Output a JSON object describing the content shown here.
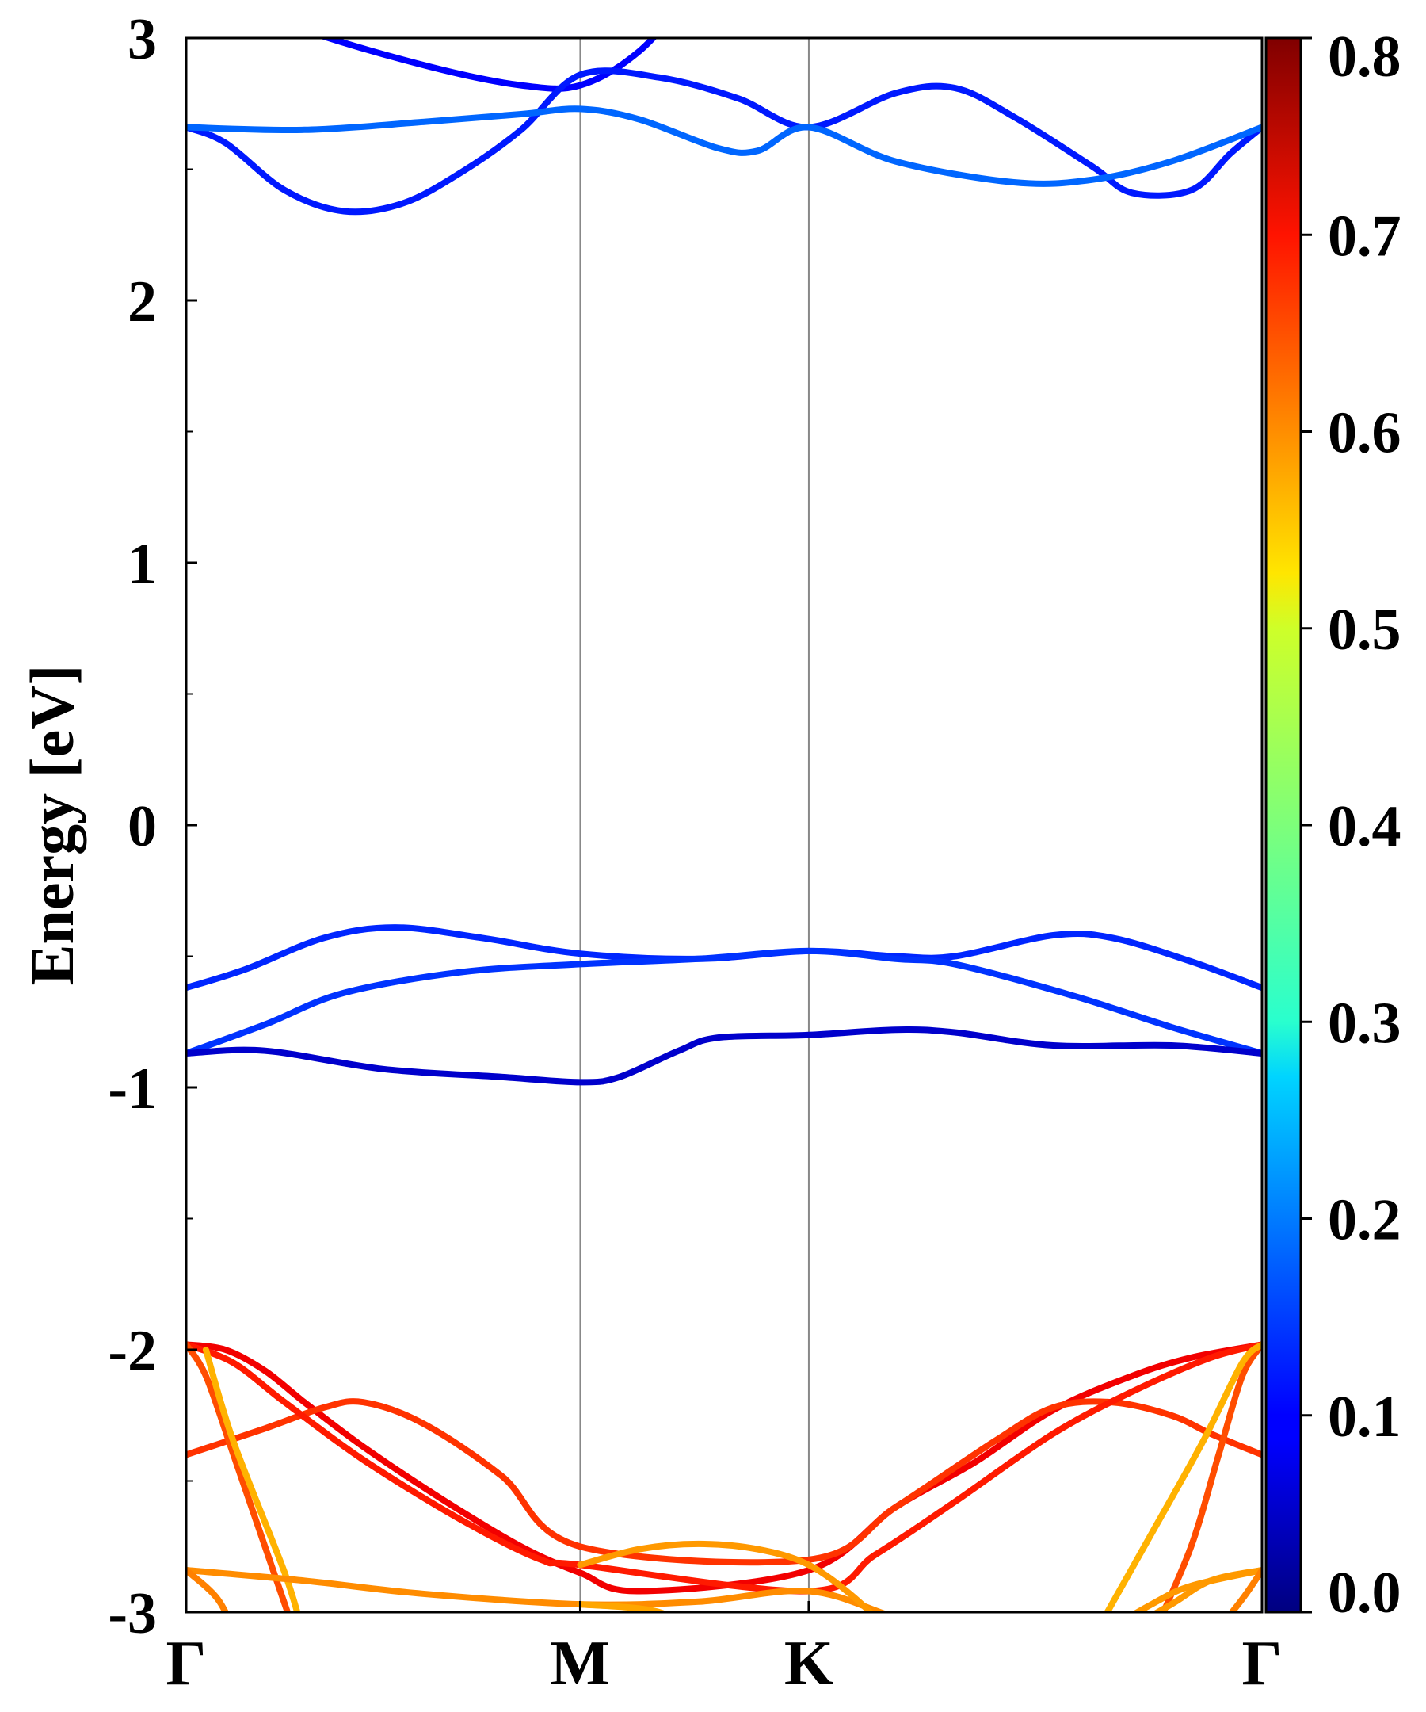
{
  "chart_data": {
    "type": "line",
    "title": "",
    "xlabel": "",
    "ylabel": "Energy [eV]",
    "ylim": [
      -3,
      3
    ],
    "yticks": [
      "-3",
      "-2",
      "-1",
      "0",
      "1",
      "2",
      "3"
    ],
    "xticks": [
      "Γ",
      "M",
      "K",
      "Γ"
    ],
    "high_symmetry_positions": [
      0,
      1,
      1.58,
      2.73
    ],
    "grid": false,
    "colorbar": {
      "min": 0.0,
      "max": 0.8,
      "ticks": [
        "0.0",
        "0.1",
        "0.2",
        "0.3",
        "0.4",
        "0.5",
        "0.6",
        "0.7",
        "0.8"
      ],
      "colormap": "jet"
    },
    "series": [
      {
        "weight": 0.1,
        "points": [
          [
            0,
            3.2
          ],
          [
            0.3,
            3.03
          ],
          [
            0.62,
            2.89
          ],
          [
            0.85,
            2.82
          ],
          [
            1,
            2.82
          ],
          [
            1.15,
            2.95
          ],
          [
            1.3,
            3.2
          ]
        ]
      },
      {
        "weight": 0.12,
        "points": [
          [
            0,
            2.66
          ],
          [
            0.1,
            2.6
          ],
          [
            0.25,
            2.42
          ],
          [
            0.4,
            2.34
          ],
          [
            0.55,
            2.37
          ],
          [
            0.7,
            2.49
          ],
          [
            0.85,
            2.65
          ],
          [
            1,
            2.86
          ],
          [
            1.2,
            2.85
          ],
          [
            1.4,
            2.77
          ],
          [
            1.58,
            2.66
          ],
          [
            1.8,
            2.79
          ],
          [
            1.95,
            2.81
          ],
          [
            2.1,
            2.7
          ],
          [
            2.3,
            2.51
          ],
          [
            2.4,
            2.41
          ],
          [
            2.55,
            2.42
          ],
          [
            2.65,
            2.56
          ],
          [
            2.73,
            2.66
          ]
        ]
      },
      {
        "weight": 0.18,
        "points": [
          [
            0,
            2.66
          ],
          [
            0.3,
            2.65
          ],
          [
            0.6,
            2.68
          ],
          [
            0.85,
            2.71
          ],
          [
            1,
            2.73
          ],
          [
            1.15,
            2.69
          ],
          [
            1.35,
            2.58
          ],
          [
            1.45,
            2.57
          ],
          [
            1.58,
            2.66
          ],
          [
            1.8,
            2.53
          ],
          [
            2.1,
            2.45
          ],
          [
            2.3,
            2.46
          ],
          [
            2.5,
            2.53
          ],
          [
            2.73,
            2.66
          ]
        ]
      },
      {
        "weight": 0.13,
        "points": [
          [
            0,
            -0.62
          ],
          [
            0.15,
            -0.55
          ],
          [
            0.35,
            -0.43
          ],
          [
            0.53,
            -0.39
          ],
          [
            0.75,
            -0.43
          ],
          [
            1,
            -0.49
          ],
          [
            1.3,
            -0.51
          ],
          [
            1.58,
            -0.48
          ],
          [
            1.8,
            -0.5
          ],
          [
            1.95,
            -0.5
          ],
          [
            2.2,
            -0.42
          ],
          [
            2.35,
            -0.43
          ],
          [
            2.55,
            -0.52
          ],
          [
            2.73,
            -0.62
          ]
        ]
      },
      {
        "weight": 0.14,
        "points": [
          [
            0,
            -0.87
          ],
          [
            0.2,
            -0.76
          ],
          [
            0.4,
            -0.64
          ],
          [
            0.7,
            -0.56
          ],
          [
            1,
            -0.53
          ],
          [
            1.3,
            -0.51
          ],
          [
            1.58,
            -0.48
          ],
          [
            1.8,
            -0.51
          ],
          [
            1.95,
            -0.53
          ],
          [
            2.25,
            -0.65
          ],
          [
            2.5,
            -0.77
          ],
          [
            2.73,
            -0.87
          ]
        ]
      },
      {
        "weight": 0.06,
        "points": [
          [
            0,
            -0.87
          ],
          [
            0.2,
            -0.86
          ],
          [
            0.5,
            -0.93
          ],
          [
            0.8,
            -0.96
          ],
          [
            1,
            -0.98
          ],
          [
            1.1,
            -0.96
          ],
          [
            1.25,
            -0.86
          ],
          [
            1.35,
            -0.81
          ],
          [
            1.58,
            -0.8
          ],
          [
            1.8,
            -0.78
          ],
          [
            1.95,
            -0.79
          ],
          [
            2.2,
            -0.84
          ],
          [
            2.5,
            -0.84
          ],
          [
            2.73,
            -0.87
          ]
        ]
      },
      {
        "weight": 0.71,
        "points": [
          [
            0,
            -1.98
          ],
          [
            0.1,
            -2.0
          ],
          [
            0.2,
            -2.08
          ],
          [
            0.3,
            -2.2
          ],
          [
            0.45,
            -2.37
          ],
          [
            0.65,
            -2.57
          ],
          [
            0.85,
            -2.75
          ],
          [
            1,
            -2.85
          ],
          [
            1.15,
            -2.92
          ],
          [
            1.58,
            -2.84
          ],
          [
            1.8,
            -2.6
          ],
          [
            2.0,
            -2.43
          ],
          [
            2.2,
            -2.23
          ],
          [
            2.4,
            -2.1
          ],
          [
            2.55,
            -2.03
          ],
          [
            2.73,
            -1.98
          ]
        ]
      },
      {
        "weight": 0.66,
        "points": [
          [
            0,
            -2.4
          ],
          [
            0.2,
            -2.3
          ],
          [
            0.35,
            -2.22
          ],
          [
            0.45,
            -2.2
          ],
          [
            0.6,
            -2.28
          ],
          [
            0.8,
            -2.48
          ],
          [
            1,
            -2.75
          ],
          [
            1.58,
            -2.8
          ],
          [
            1.8,
            -2.6
          ],
          [
            2.05,
            -2.35
          ],
          [
            2.2,
            -2.22
          ],
          [
            2.35,
            -2.2
          ],
          [
            2.5,
            -2.25
          ],
          [
            2.6,
            -2.32
          ],
          [
            2.73,
            -2.4
          ]
        ]
      },
      {
        "weight": 0.68,
        "points": [
          [
            0,
            -1.98
          ],
          [
            0.12,
            -2.05
          ],
          [
            0.25,
            -2.2
          ],
          [
            0.45,
            -2.42
          ],
          [
            0.7,
            -2.65
          ],
          [
            0.9,
            -2.8
          ],
          [
            1,
            -2.82
          ],
          [
            1.58,
            -2.92
          ],
          [
            1.75,
            -2.78
          ],
          [
            1.95,
            -2.58
          ],
          [
            2.2,
            -2.32
          ],
          [
            2.4,
            -2.16
          ],
          [
            2.6,
            -2.03
          ],
          [
            2.73,
            -1.98
          ]
        ]
      },
      {
        "weight": 0.64,
        "points": [
          [
            0,
            -1.98
          ],
          [
            0.05,
            -2.1
          ],
          [
            0.12,
            -2.4
          ],
          [
            0.2,
            -2.75
          ],
          [
            0.28,
            -3.1
          ]
        ]
      },
      {
        "weight": 0.64,
        "points": [
          [
            2.45,
            -3.1
          ],
          [
            2.55,
            -2.75
          ],
          [
            2.62,
            -2.4
          ],
          [
            2.68,
            -2.1
          ],
          [
            2.73,
            -1.98
          ]
        ]
      },
      {
        "weight": 0.56,
        "points": [
          [
            0.05,
            -2.0
          ],
          [
            0.12,
            -2.35
          ],
          [
            0.25,
            -2.85
          ],
          [
            0.3,
            -3.1
          ]
        ]
      },
      {
        "weight": 0.56,
        "points": [
          [
            2.3,
            -3.1
          ],
          [
            2.45,
            -2.7
          ],
          [
            2.58,
            -2.35
          ],
          [
            2.68,
            -2.05
          ],
          [
            2.73,
            -1.98
          ]
        ]
      },
      {
        "weight": 0.59,
        "points": [
          [
            0,
            -2.84
          ],
          [
            0.3,
            -2.88
          ],
          [
            0.6,
            -2.93
          ],
          [
            1,
            -2.97
          ],
          [
            1.3,
            -2.96
          ],
          [
            1.58,
            -2.92
          ],
          [
            1.8,
            -3.02
          ],
          [
            2.0,
            -3.1
          ]
        ]
      },
      {
        "weight": 0.58,
        "points": [
          [
            2.3,
            -3.1
          ],
          [
            2.45,
            -2.97
          ],
          [
            2.55,
            -2.9
          ],
          [
            2.73,
            -2.84
          ]
        ]
      },
      {
        "weight": 0.58,
        "points": [
          [
            2.35,
            -3.1
          ],
          [
            2.5,
            -2.97
          ],
          [
            2.6,
            -2.88
          ],
          [
            2.73,
            -2.84
          ]
        ]
      },
      {
        "weight": 0.58,
        "points": [
          [
            1,
            -2.82
          ],
          [
            1.15,
            -2.76
          ],
          [
            1.3,
            -2.74
          ],
          [
            1.45,
            -2.76
          ],
          [
            1.58,
            -2.82
          ],
          [
            1.7,
            -2.95
          ],
          [
            1.8,
            -3.1
          ]
        ]
      },
      {
        "weight": 0.6,
        "points": [
          [
            0,
            -2.84
          ],
          [
            0.08,
            -2.95
          ],
          [
            0.13,
            -3.1
          ]
        ]
      },
      {
        "weight": 0.6,
        "points": [
          [
            2.6,
            -3.1
          ],
          [
            2.68,
            -2.95
          ],
          [
            2.73,
            -2.84
          ]
        ]
      },
      {
        "weight": 0.57,
        "points": [
          [
            1,
            -2.97
          ],
          [
            1.2,
            -3.0
          ],
          [
            1.3,
            -3.1
          ]
        ]
      }
    ]
  }
}
